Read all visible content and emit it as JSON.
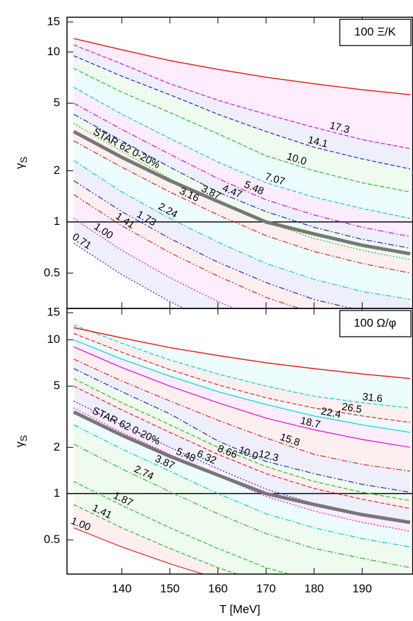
{
  "chart_data": [
    {
      "type": "contour-lines",
      "panel_label": "100 Ξ/K",
      "x": [
        130,
        140,
        150,
        160,
        170,
        180,
        190,
        200
      ],
      "xlim": [
        128.6,
        200.5
      ],
      "xticks": [
        140,
        150,
        160,
        170,
        180,
        190
      ],
      "xtick_labels": false,
      "ylim": [
        0.31,
        16
      ],
      "yticks": [
        0.5,
        1,
        2,
        5,
        10,
        15
      ],
      "log_y": true,
      "ylabel": {
        "main": "γ",
        "sub": "S"
      },
      "hline": 1,
      "boundary": {
        "color": "#e8201c",
        "values": [
          12,
          10.3,
          8.9,
          7.9,
          7.1,
          6.5,
          6.0,
          5.6
        ]
      },
      "reference": {
        "name": "STAR 62 0-20%",
        "color": "#777777",
        "values": [
          3.4,
          2.4,
          1.75,
          1.32,
          1.0,
          0.85,
          0.73,
          0.65
        ]
      },
      "series": [
        {
          "name": "17.3",
          "color": "#e000e0",
          "dash": "dashed",
          "values": [
            11,
            8.5,
            6.5,
            5.2,
            4.3,
            3.6,
            3.05,
            2.7
          ]
        },
        {
          "name": "14.1",
          "color": "#2020d0",
          "dash": "dashed",
          "values": [
            9.5,
            7.2,
            5.6,
            4.3,
            3.4,
            2.75,
            2.35,
            2.05
          ]
        },
        {
          "name": "10.0",
          "color": "#20c020",
          "dash": "dashed",
          "values": [
            8,
            5.8,
            4.4,
            3.3,
            2.45,
            2.0,
            1.7,
            1.5
          ]
        },
        {
          "name": "7.07",
          "color": "#00d0d0",
          "dash": "dashed",
          "values": [
            6.2,
            4.3,
            3.1,
            2.25,
            1.7,
            1.4,
            1.2,
            1.05
          ]
        },
        {
          "name": "5.48",
          "color": "#e000e0",
          "dash": "dashdot",
          "values": [
            5,
            3.5,
            2.5,
            1.8,
            1.35,
            1.1,
            0.93,
            0.82
          ]
        },
        {
          "name": "4.47",
          "color": "#2020d0",
          "dash": "dashdot",
          "values": [
            4.3,
            3.0,
            2.1,
            1.5,
            1.15,
            0.93,
            0.79,
            0.7
          ]
        },
        {
          "name": "3.87",
          "color": "#20c020",
          "dash": "dotted",
          "values": [
            3.8,
            2.6,
            1.8,
            1.3,
            1.0,
            0.8,
            0.68,
            0.6
          ]
        },
        {
          "name": "3.16",
          "color": "#e02020",
          "dash": "dashdot",
          "values": [
            3.0,
            2.1,
            1.5,
            1.1,
            0.83,
            0.67,
            0.57,
            0.5
          ]
        },
        {
          "name": "2.24",
          "color": "#00d0d0",
          "dash": "dashdot",
          "values": [
            2.3,
            1.5,
            1.05,
            0.76,
            0.57,
            0.46,
            0.39,
            0.35
          ]
        },
        {
          "name": "1.73",
          "color": "#2020d0",
          "dash": "dashdotdot",
          "values": [
            1.75,
            1.15,
            0.8,
            0.58,
            0.44,
            0.35,
            0.3,
            0.27
          ]
        },
        {
          "name": "1.41",
          "color": "#e02020",
          "dash": "dashdotdot",
          "values": [
            1.45,
            0.95,
            0.66,
            0.48,
            0.36,
            0.29,
            0.25,
            0.22
          ]
        },
        {
          "name": "1.00",
          "color": "#e000e0",
          "dash": "dotted",
          "values": [
            1.05,
            0.68,
            0.47,
            0.34,
            0.26,
            0.21,
            0.18,
            0.16
          ]
        },
        {
          "name": "0.71",
          "color": "#2020d0",
          "dash": "dotted",
          "values": [
            0.75,
            0.49,
            0.34,
            0.25,
            0.19,
            0.15,
            0.13,
            0.11
          ]
        }
      ]
    },
    {
      "type": "contour-lines",
      "panel_label": "100 Ω/φ",
      "x": [
        130,
        140,
        150,
        160,
        170,
        180,
        190,
        200
      ],
      "xlim": [
        128.6,
        200.5
      ],
      "xticks": [
        140,
        150,
        160,
        170,
        180,
        190
      ],
      "xtick_labels": true,
      "xlabel": "T [MeV]",
      "ylim": [
        0.3,
        16
      ],
      "yticks": [
        0.5,
        1,
        2,
        5,
        10,
        15
      ],
      "log_y": true,
      "ylabel": {
        "main": "γ",
        "sub": "S"
      },
      "hline": 1,
      "boundary": {
        "color": "#e8201c",
        "values": [
          12,
          10.3,
          8.9,
          7.9,
          7.1,
          6.5,
          6.0,
          5.6
        ]
      },
      "reference": {
        "name": "STAR 62 0-20%",
        "color": "#777777",
        "values": [
          3.4,
          2.4,
          1.75,
          1.32,
          1.0,
          0.85,
          0.73,
          0.65
        ]
      },
      "series": [
        {
          "name": "31.6",
          "color": "#00d0d0",
          "dash": "dashed",
          "values": [
            12.5,
            9.5,
            7.4,
            6.0,
            5.0,
            4.3,
            3.9,
            3.6
          ]
        },
        {
          "name": "26.5",
          "color": "#e02020",
          "dash": "dashed",
          "values": [
            11,
            8.3,
            6.4,
            5.1,
            4.2,
            3.6,
            3.2,
            2.9
          ]
        },
        {
          "name": "22.4",
          "color": "#00d0d0",
          "dash": "solid",
          "values": [
            10,
            7.5,
            5.8,
            4.6,
            3.8,
            3.2,
            2.8,
            2.5
          ]
        },
        {
          "name": "18.7",
          "color": "#e000e0",
          "dash": "solid",
          "values": [
            9.0,
            6.6,
            5.0,
            3.9,
            3.1,
            2.6,
            2.25,
            2.0
          ]
        },
        {
          "name": "15.8",
          "color": "#e02020",
          "dash": "dashdot",
          "values": [
            7.5,
            5.4,
            4.0,
            3.0,
            2.3,
            1.8,
            1.55,
            1.4
          ]
        },
        {
          "name": "12.3",
          "color": "#2020d0",
          "dash": "dashdot",
          "values": [
            6.5,
            4.6,
            3.3,
            2.2,
            1.62,
            1.35,
            1.15,
            1.02
          ]
        },
        {
          "name": "10.0",
          "color": "#20c020",
          "dash": "dashed",
          "values": [
            5.6,
            3.9,
            2.8,
            2.0,
            1.5,
            1.2,
            1.02,
            0.9
          ]
        },
        {
          "name": "8.66",
          "color": "#e02020",
          "dash": "dashed",
          "values": [
            5.0,
            3.5,
            2.5,
            1.8,
            1.35,
            1.08,
            0.92,
            0.8
          ]
        },
        {
          "name": "6.32",
          "color": "#2020d0",
          "dash": "dotted",
          "values": [
            4.0,
            2.8,
            2.0,
            1.45,
            1.07,
            0.86,
            0.73,
            0.64
          ]
        },
        {
          "name": "5.48",
          "color": "#e000e0",
          "dash": "dotted",
          "values": [
            3.6,
            2.5,
            1.8,
            1.3,
            0.96,
            0.77,
            0.65,
            0.57
          ]
        },
        {
          "name": "3.87",
          "color": "#00d0d0",
          "dash": "dashdot",
          "values": [
            2.8,
            1.95,
            1.4,
            1.0,
            0.74,
            0.6,
            0.51,
            0.45
          ]
        },
        {
          "name": "2.74",
          "color": "#20c020",
          "dash": "dashdot",
          "values": [
            2.1,
            1.45,
            1.03,
            0.74,
            0.55,
            0.44,
            0.38,
            0.33
          ]
        },
        {
          "name": "1.87",
          "color": "#20c020",
          "dash": "dashed",
          "values": [
            1.2,
            0.84,
            0.6,
            0.44,
            0.33,
            0.27,
            0.23,
            0.2
          ]
        },
        {
          "name": "1.41",
          "color": "#20c020",
          "dash": "dashed",
          "values": [
            0.85,
            0.6,
            0.44,
            0.33,
            0.26,
            0.21,
            0.18,
            0.16
          ]
        },
        {
          "name": "1.00",
          "color": "#e02020",
          "dash": "solid",
          "values": [
            0.6,
            0.45,
            0.35,
            0.28,
            0.23,
            0.19,
            0.16,
            0.14
          ]
        }
      ]
    }
  ]
}
